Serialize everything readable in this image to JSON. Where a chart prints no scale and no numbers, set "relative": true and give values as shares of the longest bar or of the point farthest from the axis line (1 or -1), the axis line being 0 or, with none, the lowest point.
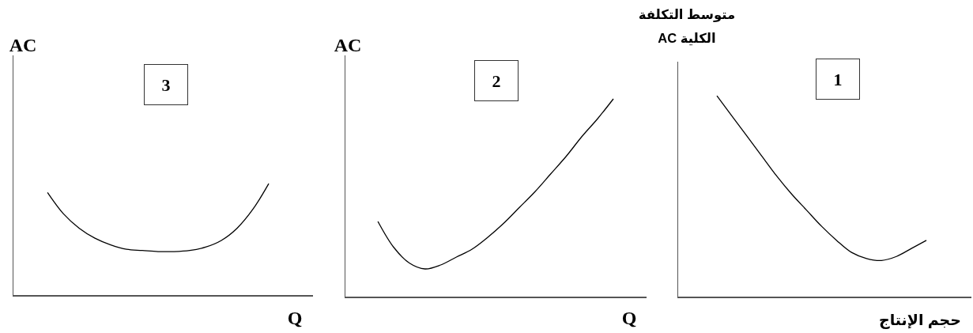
{
  "chart_data": [
    {
      "type": "line",
      "relative": true,
      "ylabel": "AC",
      "xlabel": "Q",
      "annotations": [
        "3"
      ],
      "categories": [
        null,
        null,
        null,
        null,
        null,
        null,
        null,
        null,
        null,
        null,
        null,
        null,
        null,
        null,
        null
      ],
      "series": [
        {
          "color": "#000000",
          "values": [
            0.92,
            0.73,
            0.6,
            0.51,
            0.45,
            0.41,
            0.4,
            0.39,
            0.39,
            0.4,
            0.43,
            0.49,
            0.6,
            0.77,
            1
          ]
        }
      ]
    },
    {
      "type": "line",
      "relative": true,
      "ylabel": "AC",
      "xlabel": "Q",
      "annotations": [
        "2"
      ],
      "categories": [
        null,
        null,
        null,
        null,
        null,
        null,
        null,
        null,
        null,
        null,
        null,
        null,
        null,
        null,
        null,
        null
      ],
      "series": [
        {
          "color": "#000000",
          "values": [
            0.38,
            0.25,
            0.17,
            0.14,
            0.16,
            0.2,
            0.24,
            0.3,
            0.37,
            0.45,
            0.53,
            0.62,
            0.71,
            0.81,
            0.9,
            1
          ]
        }
      ]
    },
    {
      "type": "line",
      "relative": true,
      "ylabel": "متوسط التكلفة الكلية AC",
      "xlabel": "حجم الإنتاج",
      "annotations": [
        "1"
      ],
      "categories": [
        null,
        null,
        null,
        null,
        null,
        null,
        null,
        null,
        null,
        null,
        null,
        null,
        null,
        null,
        null
      ],
      "series": [
        {
          "color": "#000000",
          "values": [
            1,
            0.9,
            0.8,
            0.7,
            0.6,
            0.51,
            0.43,
            0.35,
            0.28,
            0.22,
            0.19,
            0.18,
            0.2,
            0.24,
            0.28
          ]
        }
      ]
    }
  ]
}
